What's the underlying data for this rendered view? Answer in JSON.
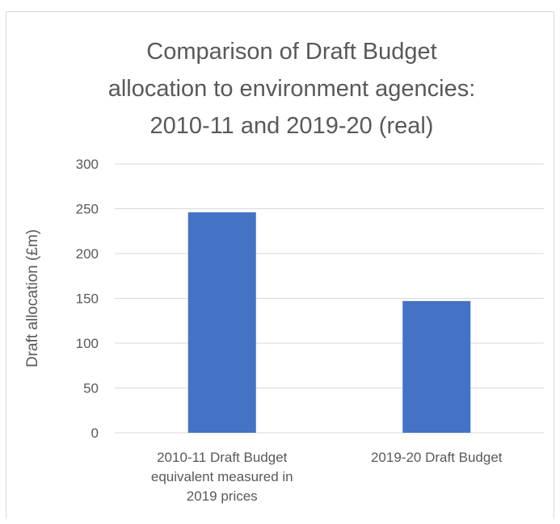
{
  "chart_data": {
    "type": "bar",
    "title_lines": [
      "Comparison of Draft Budget",
      "allocation to environment agencies:",
      "2010-11 and 2019-20 (real)"
    ],
    "xlabel": "",
    "ylabel": "Draft allocation (£m)",
    "ylim": [
      0,
      300
    ],
    "yticks": [
      0,
      50,
      100,
      150,
      200,
      250,
      300
    ],
    "gridlines": true,
    "legend": "none",
    "categories": [
      [
        "2010-11 Draft Budget",
        "equivalent measured in",
        "2019 prices"
      ],
      [
        "2019-20 Draft Budget"
      ]
    ],
    "values": [
      246,
      147
    ],
    "colors": {
      "bar": "#4472c4",
      "grid": "#d9d9d9",
      "text": "#595959",
      "frame": "#d9d9d9"
    }
  }
}
